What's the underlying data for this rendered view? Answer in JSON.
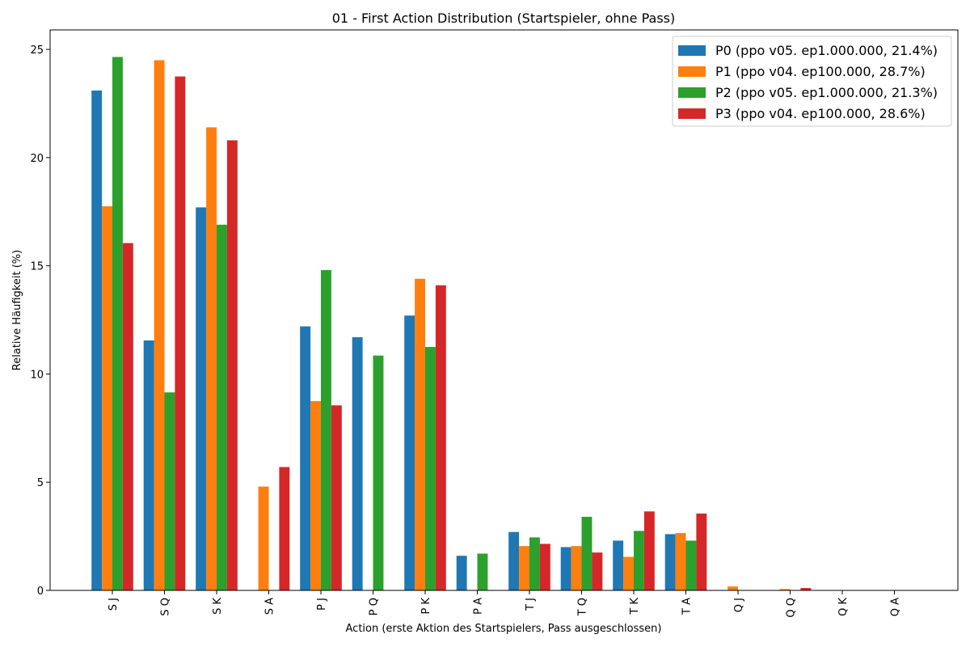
{
  "chart_data": {
    "type": "bar",
    "title": "01 - First Action Distribution (Startspieler, ohne Pass)",
    "xlabel": "Action (erste Aktion des Startspielers, Pass ausgeschlossen)",
    "ylabel": "Relative Häufigkeit (%)",
    "ylim": [
      0,
      25.9
    ],
    "yticks": [
      0,
      5,
      10,
      15,
      20,
      25
    ],
    "legend_position": "top-right",
    "categories": [
      "S J",
      "S Q",
      "S K",
      "S A",
      "P J",
      "P Q",
      "P K",
      "P A",
      "T J",
      "T Q",
      "T K",
      "T A",
      "Q J",
      "Q Q",
      "Q K",
      "Q A"
    ],
    "series": [
      {
        "name": "P0 (ppo v05. ep1.000.000, 21.4%)",
        "color": "#1f77b4",
        "values": [
          23.1,
          11.55,
          17.7,
          0,
          12.2,
          11.7,
          12.7,
          1.6,
          2.7,
          2.0,
          2.3,
          2.6,
          0,
          0,
          0,
          0
        ]
      },
      {
        "name": "P1 (ppo v04. ep100.000, 28.7%)",
        "color": "#ff7f0e",
        "values": [
          17.75,
          24.5,
          21.4,
          4.8,
          8.75,
          0,
          14.4,
          0,
          2.05,
          2.05,
          1.55,
          2.65,
          0.18,
          0.06,
          0,
          0
        ]
      },
      {
        "name": "P2 (ppo v05. ep1.000.000, 21.3%)",
        "color": "#2ca02c",
        "values": [
          24.65,
          9.15,
          16.9,
          0,
          14.8,
          10.85,
          11.25,
          1.7,
          2.45,
          3.4,
          2.75,
          2.3,
          0,
          0,
          0,
          0
        ]
      },
      {
        "name": "P3 (ppo v04. ep100.000, 28.6%)",
        "color": "#d62728",
        "values": [
          16.05,
          23.75,
          20.8,
          5.7,
          8.55,
          0,
          14.1,
          0,
          2.15,
          1.75,
          3.65,
          3.55,
          0,
          0.11,
          0,
          0
        ]
      }
    ]
  }
}
